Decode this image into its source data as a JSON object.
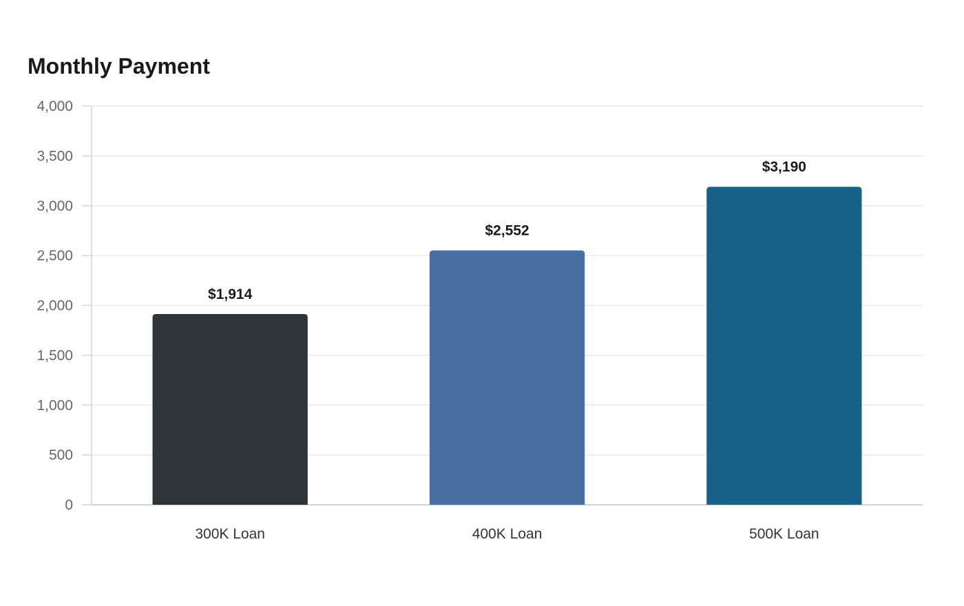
{
  "chart_data": {
    "type": "bar",
    "title": "Monthly Payment",
    "xlabel": "",
    "ylabel": "",
    "categories": [
      "300K Loan",
      "400K Loan",
      "500K Loan"
    ],
    "values": [
      1914,
      2552,
      3190
    ],
    "data_labels": [
      "$1,914",
      "$2,552",
      "$3,190"
    ],
    "colors": [
      "#2e3538",
      "#4a6fa3",
      "#186188"
    ],
    "ylim": [
      0,
      4000
    ],
    "yticks": [
      0,
      500,
      1000,
      1500,
      2000,
      2500,
      3000,
      3500,
      4000
    ],
    "ytick_labels": [
      "0",
      "500",
      "1,000",
      "1,500",
      "2,000",
      "2,500",
      "3,000",
      "3,500",
      "4,000"
    ],
    "grid": true,
    "legend": "none"
  }
}
